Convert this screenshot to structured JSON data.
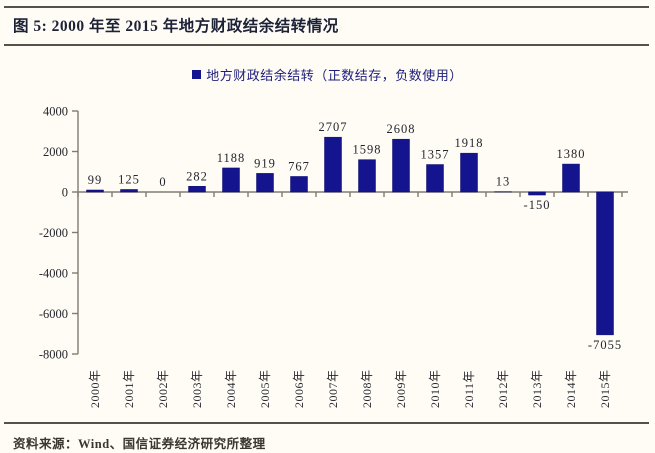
{
  "figure": {
    "title": "图 5: 2000 年至 2015 年地方财政结余结转情况",
    "source_note": "资料来源：Wind、国信证券经济研究所整理"
  },
  "legend": {
    "label": "地方财政结余结转（正数结存，负数使用）",
    "marker_color": "#14148e"
  },
  "chart_data": {
    "type": "bar",
    "title": "",
    "categories": [
      "2000年",
      "2001年",
      "2002年",
      "2003年",
      "2004年",
      "2005年",
      "2006年",
      "2007年",
      "2008年",
      "2009年",
      "2010年",
      "2011年",
      "2012年",
      "2013年",
      "2014年",
      "2015年"
    ],
    "values": [
      99,
      125,
      0,
      282,
      1188,
      919,
      767,
      2707,
      1598,
      2608,
      1357,
      1918,
      13,
      -150,
      1380,
      -7055
    ],
    "bar_color": "#14148e",
    "xlabel": "",
    "ylabel": "",
    "ylim": [
      -8000,
      4000
    ],
    "yticks": [
      4000,
      2000,
      0,
      -2000,
      -4000,
      -6000,
      -8000
    ],
    "legend": [
      "地方财政结余结转（正数结存，负数使用）"
    ],
    "legend_position": "top-center",
    "grid": false,
    "value_labels": true,
    "axis_color": "#807c74"
  }
}
